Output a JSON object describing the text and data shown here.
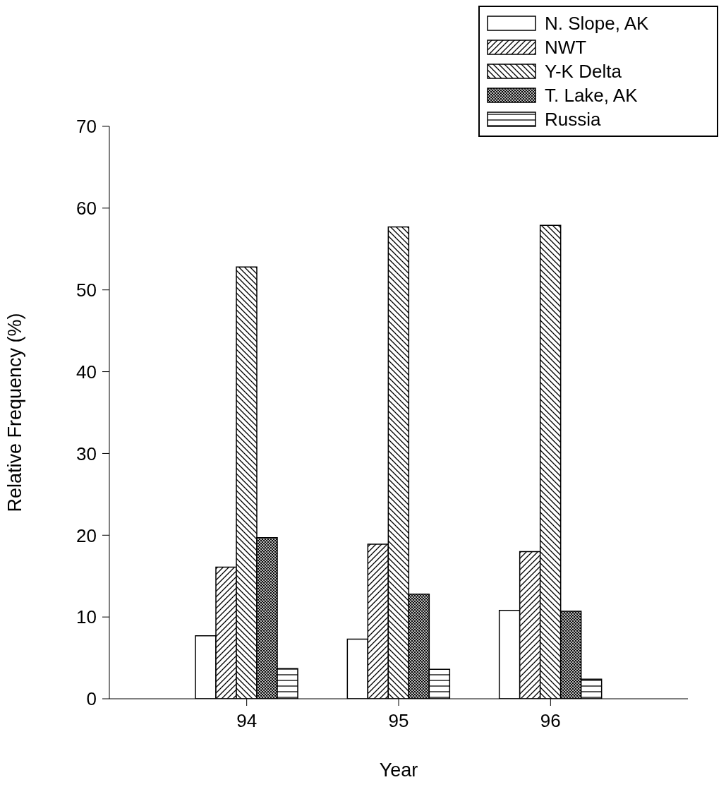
{
  "chart_data": {
    "type": "bar",
    "xlabel": "Year",
    "ylabel": "Relative Frequency (%)",
    "categories": [
      "94",
      "95",
      "96"
    ],
    "series": [
      {
        "name": "N. Slope, AK",
        "color": "#000000",
        "values": [
          7.7,
          7.3,
          10.8
        ]
      },
      {
        "name": "NWT",
        "color": "#000000",
        "values": [
          16.1,
          18.9,
          18.0
        ]
      },
      {
        "name": "Y-K Delta",
        "color": "#000000",
        "values": [
          52.8,
          57.7,
          57.9
        ]
      },
      {
        "name": "T. Lake, AK",
        "color": "#000000",
        "values": [
          19.7,
          12.8,
          10.7
        ]
      },
      {
        "name": "Russia",
        "color": "#000000",
        "values": [
          3.7,
          3.6,
          2.4
        ]
      }
    ],
    "ylim": [
      0,
      70
    ],
    "yticks": [
      0,
      10,
      20,
      30,
      40,
      50,
      60,
      70
    ],
    "legend": "top right"
  }
}
